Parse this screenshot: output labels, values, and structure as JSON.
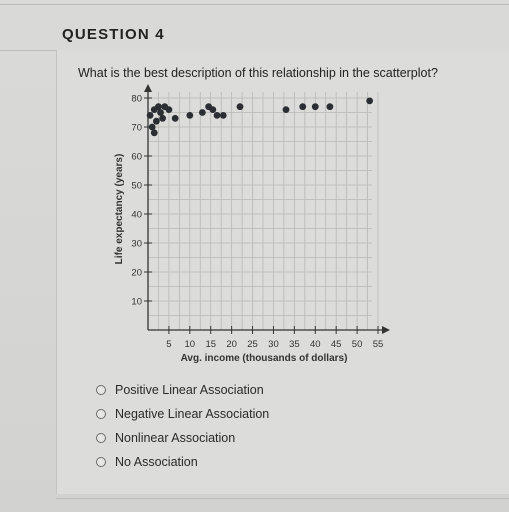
{
  "question": {
    "title": "QUESTION 4",
    "prompt": "What is the best description of this relationship in the scatterplot?"
  },
  "options": [
    {
      "label": "Positive Linear Association",
      "selected": false
    },
    {
      "label": "Negative Linear Association",
      "selected": false
    },
    {
      "label": "Nonlinear Association",
      "selected": false
    },
    {
      "label": "No Association",
      "selected": false
    }
  ],
  "chart_data": {
    "type": "scatter",
    "xlabel": "Avg. income (thousands of dollars)",
    "ylabel": "Life expectancy (years)",
    "xlim": [
      0,
      55
    ],
    "ylim": [
      0,
      80
    ],
    "x_ticks": [
      5,
      10,
      15,
      20,
      25,
      30,
      35,
      40,
      45,
      50,
      55
    ],
    "y_ticks": [
      10,
      20,
      30,
      40,
      50,
      60,
      70,
      80
    ],
    "grid": true,
    "points": [
      {
        "x": 0.5,
        "y": 74
      },
      {
        "x": 1.5,
        "y": 76
      },
      {
        "x": 2.5,
        "y": 77
      },
      {
        "x": 3,
        "y": 75
      },
      {
        "x": 2,
        "y": 72
      },
      {
        "x": 1,
        "y": 70
      },
      {
        "x": 3.5,
        "y": 73
      },
      {
        "x": 1.5,
        "y": 68
      },
      {
        "x": 4,
        "y": 77
      },
      {
        "x": 5,
        "y": 76
      },
      {
        "x": 6.5,
        "y": 73
      },
      {
        "x": 10,
        "y": 74
      },
      {
        "x": 13,
        "y": 75
      },
      {
        "x": 14.5,
        "y": 77
      },
      {
        "x": 15.5,
        "y": 76
      },
      {
        "x": 16.5,
        "y": 74
      },
      {
        "x": 18,
        "y": 74
      },
      {
        "x": 22,
        "y": 77
      },
      {
        "x": 33,
        "y": 76
      },
      {
        "x": 37,
        "y": 77
      },
      {
        "x": 40,
        "y": 77
      },
      {
        "x": 43.5,
        "y": 77
      },
      {
        "x": 53,
        "y": 79
      }
    ]
  }
}
